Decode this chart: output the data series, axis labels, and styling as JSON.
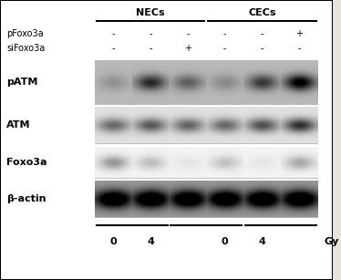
{
  "figure_bg": "#e8e4dc",
  "panel_bg": "#ffffff",
  "border_color": "#000000",
  "title_NECs": "NECs",
  "title_CECs": "CECs",
  "col_signs_pFoxo3a": [
    "-",
    "-",
    "-",
    "-",
    "-",
    "+"
  ],
  "col_signs_siFoxo3a": [
    "-",
    "-",
    "+",
    "-",
    "-",
    "-"
  ],
  "gy_labels": [
    "0",
    "4",
    "0",
    "4"
  ],
  "gy_unit": "Gy",
  "lane_count": 6,
  "blot_labels": [
    "pATM",
    "ATM",
    "Foxo3a",
    "β-actin"
  ],
  "pATM_intensities": [
    0.18,
    0.68,
    0.42,
    0.22,
    0.6,
    0.92
  ],
  "ATM_intensities": [
    0.6,
    0.68,
    0.62,
    0.6,
    0.72,
    0.88
  ],
  "Foxo3a_intensities": [
    0.52,
    0.3,
    0.08,
    0.28,
    0.08,
    0.42
  ],
  "beta_actin_intensities": [
    0.9,
    0.92,
    0.91,
    0.9,
    0.91,
    0.93
  ],
  "pATM_bg_level": 0.72,
  "ATM_bg_level": 0.88,
  "Foxo3a_bg_level": 0.95,
  "beta_actin_bg_level": 0.6,
  "label_fontsize": 8,
  "sign_fontsize": 7,
  "header_fontsize": 8
}
